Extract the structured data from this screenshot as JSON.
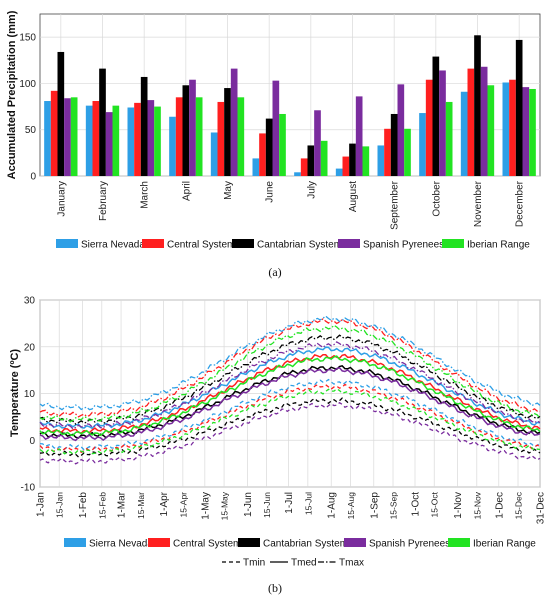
{
  "charts": [
    {
      "panel_label": "(a)",
      "chart_data": {
        "type": "bar",
        "ylabel": "Accumulated Precipitation (mm)",
        "xlabel": "",
        "ylim": [
          0,
          175
        ],
        "yticks": [
          0,
          50,
          100,
          150
        ],
        "grid": true,
        "categories": [
          "January",
          "February",
          "March",
          "April",
          "May",
          "June",
          "July",
          "August",
          "September",
          "October",
          "November",
          "December"
        ],
        "series": [
          {
            "name": "Sierra Nevada",
            "color": "#2e9fe6",
            "values": [
              81,
              76,
              74,
              64,
              47,
              19,
              4,
              8,
              33,
              68,
              91,
              101
            ]
          },
          {
            "name": "Central System",
            "color": "#ff1f1f",
            "values": [
              92,
              81,
              79,
              85,
              80,
              46,
              19,
              21,
              51,
              104,
              116,
              104
            ]
          },
          {
            "name": "Cantabrian System",
            "color": "#000000",
            "values": [
              134,
              116,
              107,
              98,
              95,
              62,
              33,
              35,
              67,
              129,
              152,
              147
            ]
          },
          {
            "name": "Spanish Pyrenees",
            "color": "#7a2c9e",
            "values": [
              84,
              69,
              82,
              104,
              116,
              103,
              71,
              86,
              99,
              114,
              118,
              96
            ]
          },
          {
            "name": "Iberian Range",
            "color": "#22e322",
            "values": [
              85,
              76,
              75,
              85,
              85,
              67,
              38,
              32,
              51,
              80,
              98,
              94
            ]
          }
        ],
        "legend_position": "bottom"
      }
    },
    {
      "panel_label": "(b)",
      "chart_data": {
        "type": "line",
        "ylabel": "Temperature (ºC)",
        "xlabel": "",
        "ylim": [
          -10,
          30
        ],
        "yticks": [
          -10,
          0,
          10,
          20,
          30
        ],
        "grid": true,
        "x_ticks": [
          "1-Jan",
          "15-Jan",
          "1-Feb",
          "15-Feb",
          "1-Mar",
          "15-Mar",
          "1-Apr",
          "15-Apr",
          "1-May",
          "15-May",
          "1-Jun",
          "15-Jun",
          "1-Jul",
          "15-Jul",
          "1-Aug",
          "15-Aug",
          "1-Sep",
          "15-Sep",
          "1-Oct",
          "15-Oct",
          "1-Nov",
          "15-Nov",
          "1-Dec",
          "15-Dec",
          "31-Dec"
        ],
        "x_tick_days": [
          1,
          15,
          32,
          46,
          60,
          74,
          91,
          105,
          121,
          135,
          152,
          166,
          182,
          196,
          213,
          227,
          244,
          258,
          274,
          288,
          305,
          319,
          335,
          349,
          365
        ],
        "x_range": [
          1,
          365
        ],
        "series_names": [
          "Sierra Nevada",
          "Central System",
          "Cantabrian System",
          "Spanish Pyrenees",
          "Iberian Range"
        ],
        "series_colors": [
          "#2e9fe6",
          "#ff1f1f",
          "#000000",
          "#7a2c9e",
          "#22e322"
        ],
        "line_styles": [
          {
            "name": "Tmin",
            "dash": "dashed"
          },
          {
            "name": "Tmed",
            "dash": "solid"
          },
          {
            "name": "Tmax",
            "dash": "dashdot"
          }
        ],
        "series": [
          {
            "region": "Sierra Nevada",
            "Tmin": {
              "winter": -1.5,
              "summer": 12.5
            },
            "Tmed": {
              "winter": 3.0,
              "summer": 19.5
            },
            "Tmax": {
              "winter": 7.0,
              "summer": 26.0
            }
          },
          {
            "region": "Central System",
            "Tmin": {
              "winter": -2.0,
              "summer": 11.5
            },
            "Tmed": {
              "winter": 2.0,
              "summer": 18.0
            },
            "Tmax": {
              "winter": 5.5,
              "summer": 25.5
            }
          },
          {
            "region": "Cantabrian System",
            "Tmin": {
              "winter": -3.0,
              "summer": 8.5
            },
            "Tmed": {
              "winter": 1.0,
              "summer": 15.5
            },
            "Tmax": {
              "winter": 4.0,
              "summer": 22.0
            }
          },
          {
            "region": "Spanish Pyrenees",
            "Tmin": {
              "winter": -4.5,
              "summer": 7.5
            },
            "Tmed": {
              "winter": 0.5,
              "summer": 15.0
            },
            "Tmax": {
              "winter": 3.0,
              "summer": 20.5
            }
          },
          {
            "region": "Iberian Range",
            "Tmin": {
              "winter": -2.5,
              "summer": 10.5
            },
            "Tmed": {
              "winter": 1.5,
              "summer": 17.5
            },
            "Tmax": {
              "winter": 4.5,
              "summer": 24.0
            }
          }
        ],
        "legend_position": "bottom"
      }
    }
  ]
}
